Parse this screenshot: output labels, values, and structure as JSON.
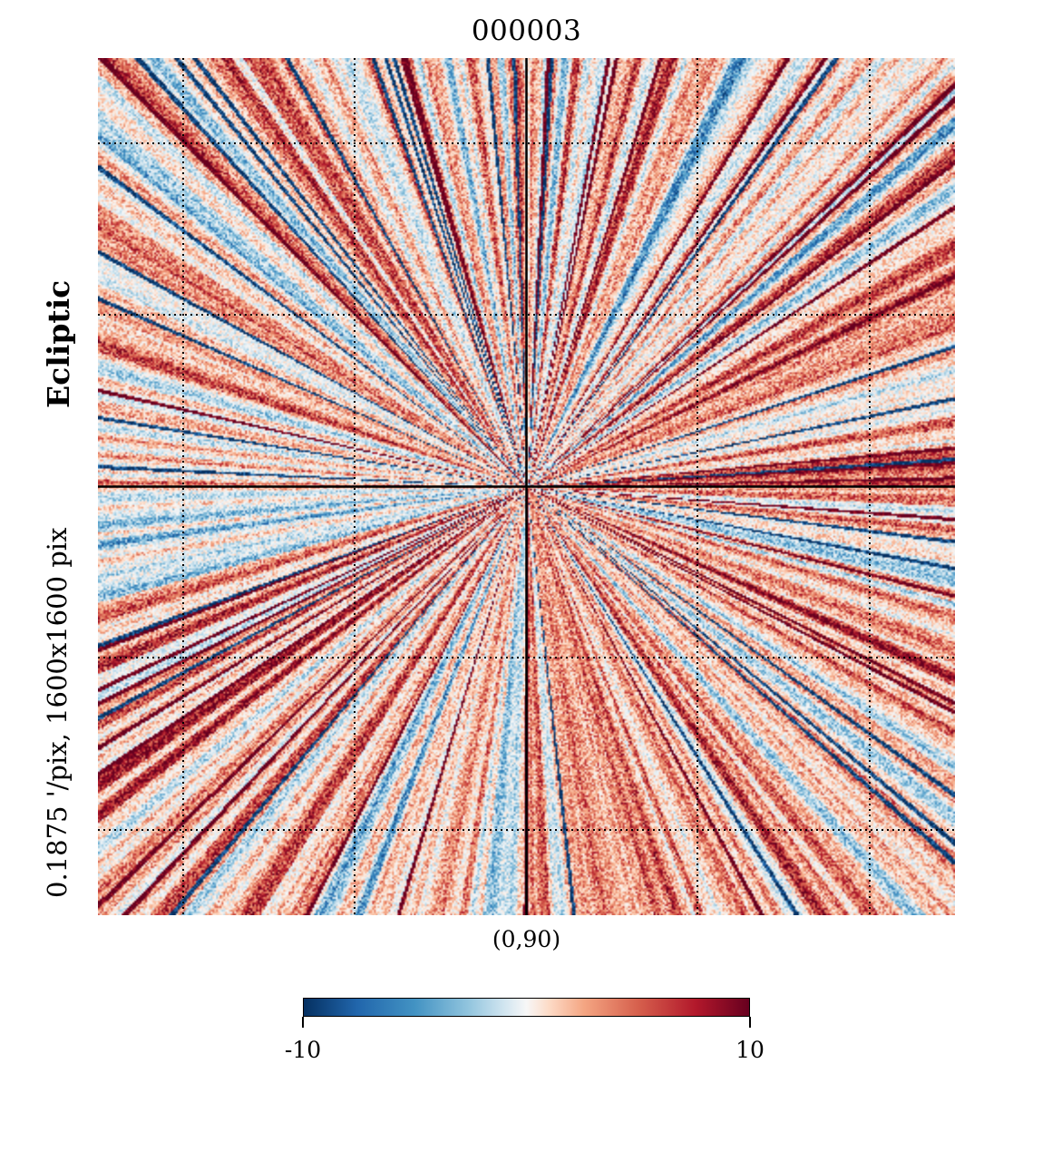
{
  "chart_data": {
    "type": "heatmap",
    "title": "000003",
    "projection_center": "(0,90)",
    "coord_system": "Ecliptic",
    "resolution_label": "0.1875 '/pix,   1600x1600 pix",
    "colormap": [
      "#053061",
      "#2166ac",
      "#4393c3",
      "#92c5de",
      "#d1e5f0",
      "#f7f7f7",
      "#fddbc7",
      "#f4a582",
      "#d6604d",
      "#b2182b",
      "#67001f"
    ],
    "colorbar": {
      "min": -10,
      "max": 10,
      "min_label": "-10",
      "max_label": "10"
    },
    "graticule": "dotted",
    "grid_lines": 5
  }
}
